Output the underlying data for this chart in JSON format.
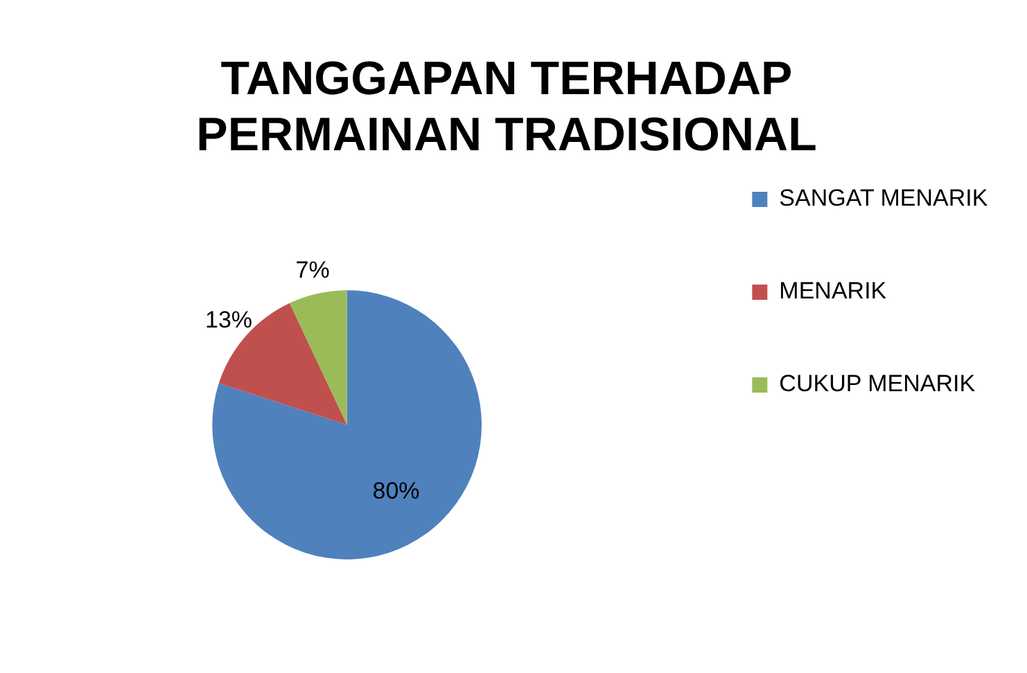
{
  "chart_data": {
    "type": "pie",
    "title": "TANGGAPAN TERHADAP PERMAINAN TRADISIONAL",
    "categories": [
      "SANGAT MENARIK",
      "MENARIK",
      "CUKUP MENARIK"
    ],
    "values": [
      80,
      13,
      7
    ],
    "colors": [
      "#4f81bd",
      "#c0504d",
      "#9bbb59"
    ],
    "value_labels": [
      "80%",
      "13%",
      "7%"
    ],
    "legend": "right"
  }
}
